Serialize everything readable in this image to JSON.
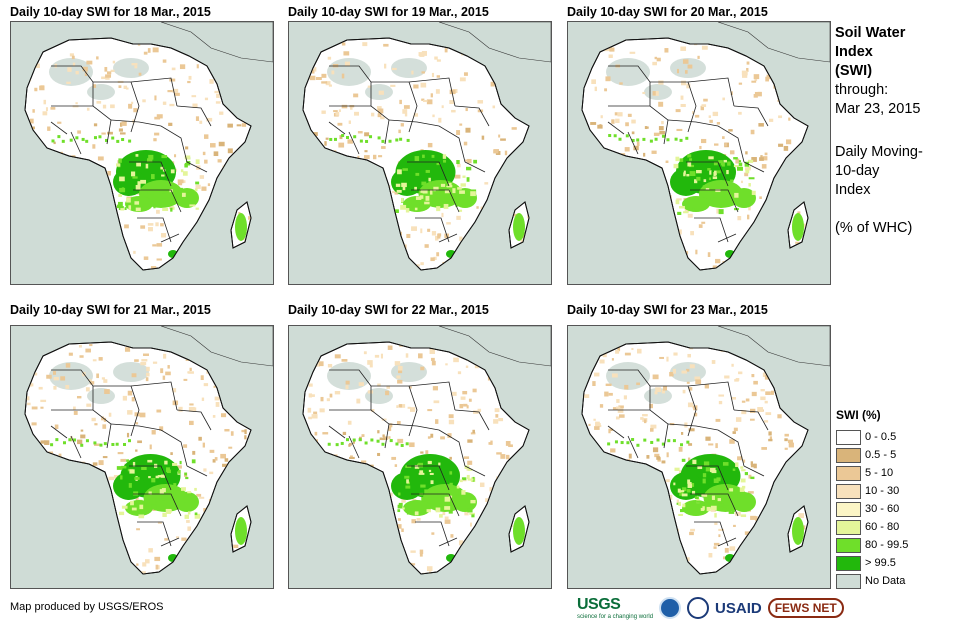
{
  "panels": [
    {
      "title": "Daily 10-day  SWI for 18 Mar., 2015"
    },
    {
      "title": "Daily 10-day  SWI for 19 Mar., 2015"
    },
    {
      "title": "Daily 10-day  SWI for 20 Mar., 2015"
    },
    {
      "title": "Daily 10-day  SWI for 21 Mar., 2015"
    },
    {
      "title": "Daily 10-day  SWI for 22 Mar., 2015"
    },
    {
      "title": "Daily 10-day  SWI for 23 Mar., 2015"
    }
  ],
  "side": {
    "title1": "Soil Water",
    "title2": "Index",
    "title3": "(SWI)",
    "through": "through:",
    "date": "Mar 23, 2015",
    "desc1": "Daily Moving-",
    "desc2": "10-day",
    "desc3": "Index",
    "units": "(% of WHC)"
  },
  "legend": {
    "title": "SWI (%)",
    "items": [
      {
        "label": "0 - 0.5",
        "color": "#ffffff"
      },
      {
        "label": "0.5 - 5",
        "color": "#d9b47a"
      },
      {
        "label": "5 - 10",
        "color": "#ebc896"
      },
      {
        "label": "10 - 30",
        "color": "#f8e1bc"
      },
      {
        "label": "30 - 60",
        "color": "#fbf5c6"
      },
      {
        "label": "60 - 80",
        "color": "#e4f59a"
      },
      {
        "label": "80 - 99.5",
        "color": "#6fdf2a"
      },
      {
        "label": "> 99.5",
        "color": "#22b80c"
      },
      {
        "label": "No Data",
        "color": "#cfdcd6"
      }
    ]
  },
  "credit": "Map produced by USGS/EROS",
  "logos": {
    "usgs": "USGS",
    "usgs_tag": "science for a changing world",
    "usaid": "USAID",
    "fews": "FEWS NET"
  }
}
